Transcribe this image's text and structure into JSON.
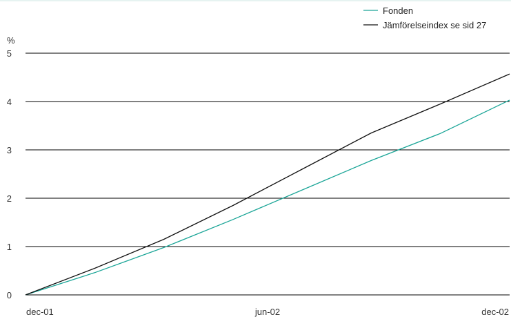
{
  "chart_data": {
    "type": "line",
    "title": "",
    "xlabel": "",
    "ylabel": "%",
    "ylim": [
      0,
      5
    ],
    "yticks": [
      "0",
      "1",
      "2",
      "3",
      "4",
      "5"
    ],
    "xticks": [
      "dec-01",
      "jun-02",
      "dec-02"
    ],
    "grid": "horizontal",
    "legend_position": "top-right",
    "series": [
      {
        "name": "Fonden",
        "color": "#1aa597",
        "values": [
          {
            "x": 0,
            "y": 0
          },
          {
            "x": 1,
            "y": 0.46
          },
          {
            "x": 2,
            "y": 0.98
          },
          {
            "x": 3,
            "y": 1.56
          },
          {
            "x": 4,
            "y": 2.17
          },
          {
            "x": 5,
            "y": 2.78
          },
          {
            "x": 6,
            "y": 3.34
          },
          {
            "x": 7,
            "y": 4.03
          }
        ]
      },
      {
        "name": "Jämförelseindex se sid 27",
        "color": "#111111",
        "values": [
          {
            "x": 0,
            "y": 0
          },
          {
            "x": 1,
            "y": 0.55
          },
          {
            "x": 2,
            "y": 1.15
          },
          {
            "x": 3,
            "y": 1.85
          },
          {
            "x": 4,
            "y": 2.6
          },
          {
            "x": 5,
            "y": 3.35
          },
          {
            "x": 6,
            "y": 3.95
          },
          {
            "x": 7,
            "y": 4.57
          }
        ]
      }
    ]
  }
}
